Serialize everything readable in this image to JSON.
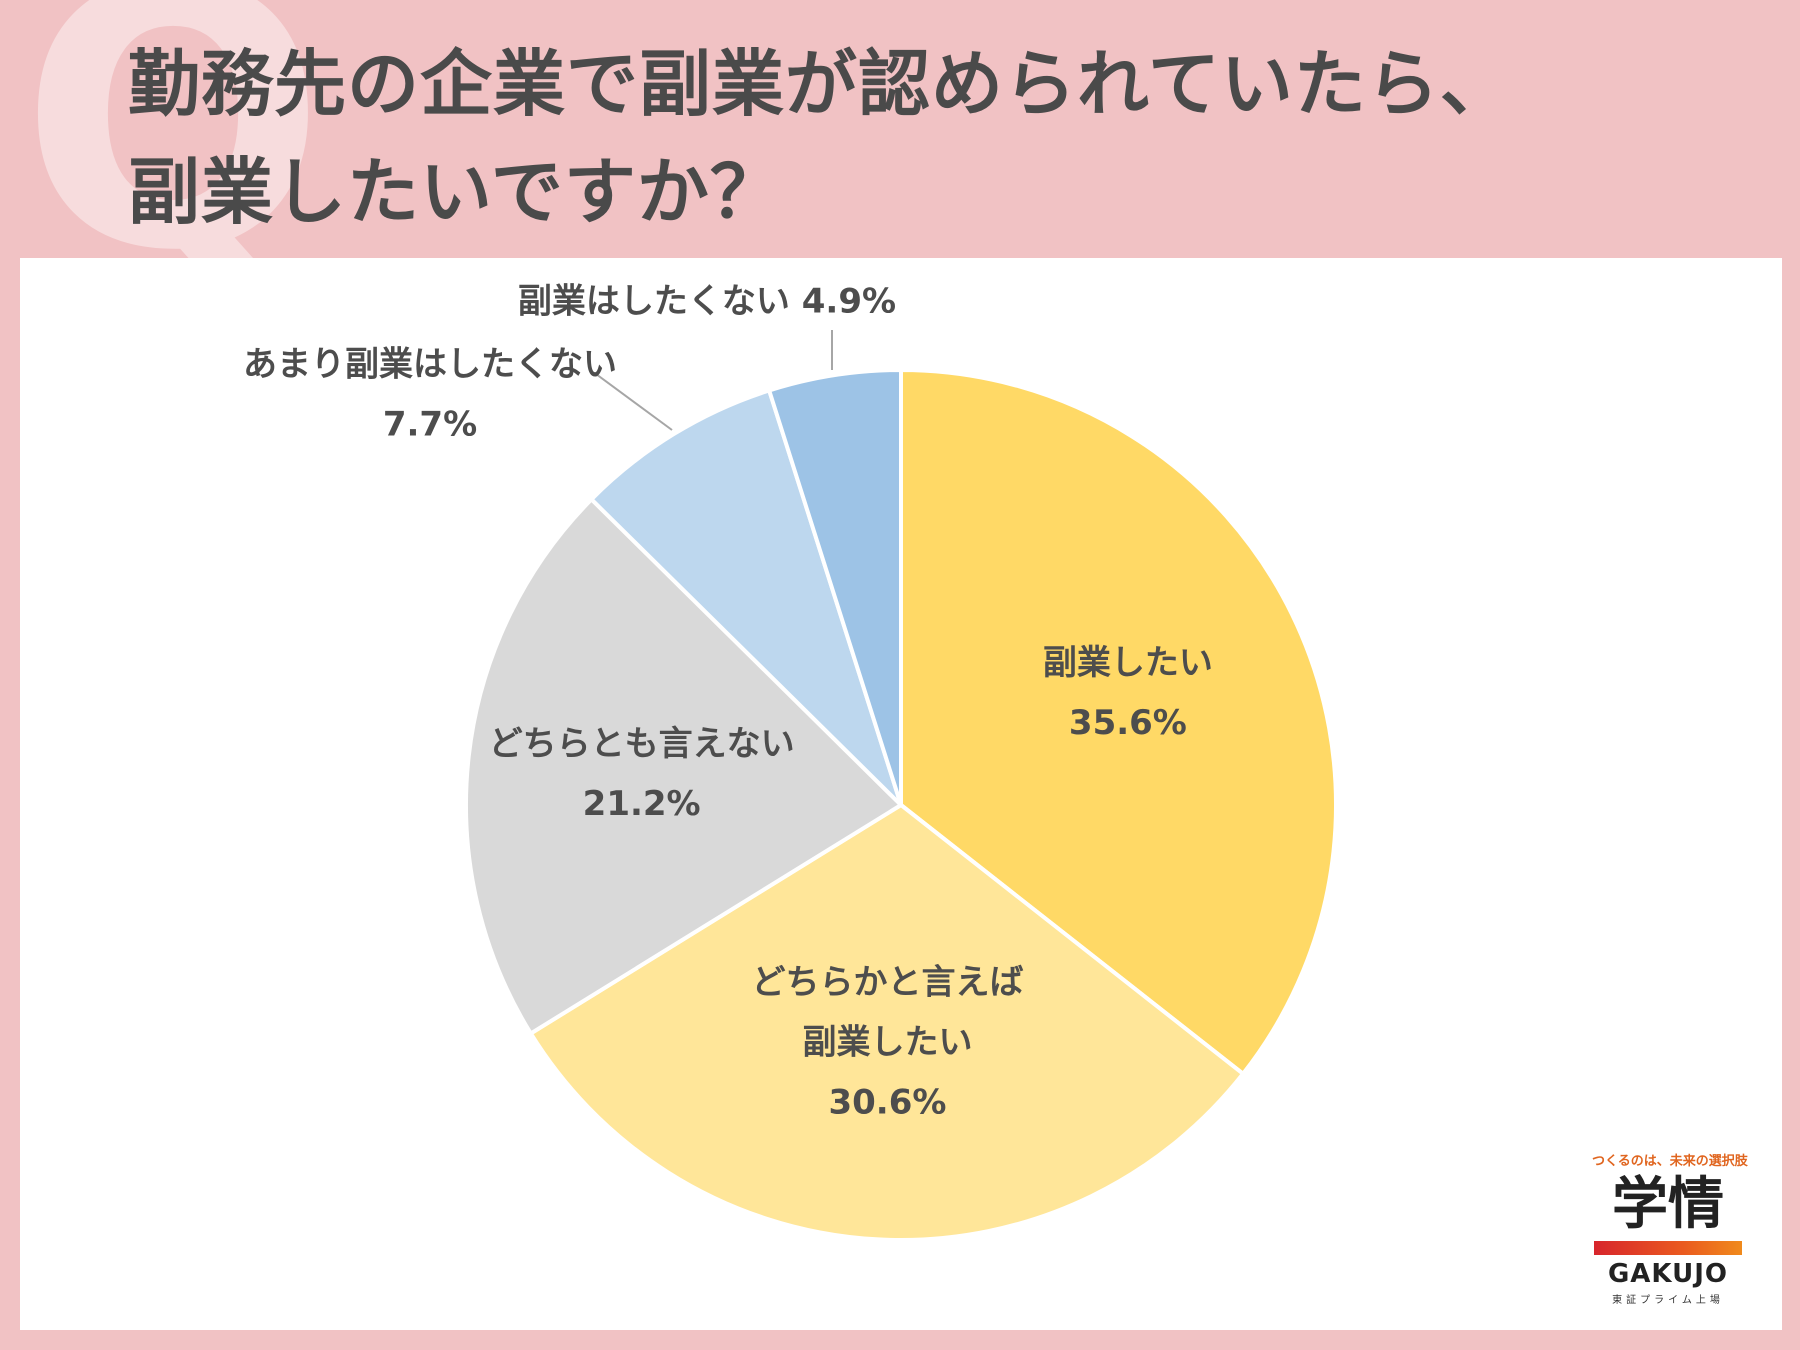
{
  "header": {
    "q_mark": "Q",
    "title_line1": "勤務先の企業で副業が認められていたら、",
    "title_line2": "副業したいですか？"
  },
  "chart_data": {
    "type": "pie",
    "title": "勤務先の企業で副業が認められていたら、副業したいですか？",
    "unit": "%",
    "slices": [
      {
        "label": "副業したい",
        "value": 35.6,
        "value_label": "35.6%",
        "color": "#ffd966"
      },
      {
        "label": "どちらかと言えば副業したい",
        "label_lines": [
          "どちらかと言えば",
          "副業したい"
        ],
        "value": 30.6,
        "value_label": "30.6%",
        "color": "#ffe699"
      },
      {
        "label": "どちらとも言えない",
        "value": 21.2,
        "value_label": "21.2%",
        "color": "#d9d9d9"
      },
      {
        "label": "あまり副業はしたくない",
        "value": 7.7,
        "value_label": "7.7%",
        "color": "#bdd7ee"
      },
      {
        "label": "副業はしたくない",
        "value": 4.9,
        "value_label": "4.9%",
        "color": "#9dc3e6"
      }
    ]
  },
  "logo": {
    "tagline": "つくるのは、未来の選択肢",
    "name_kanji": "学情",
    "name_roman": "GAKUJO",
    "listed": "東証プライム上場"
  }
}
